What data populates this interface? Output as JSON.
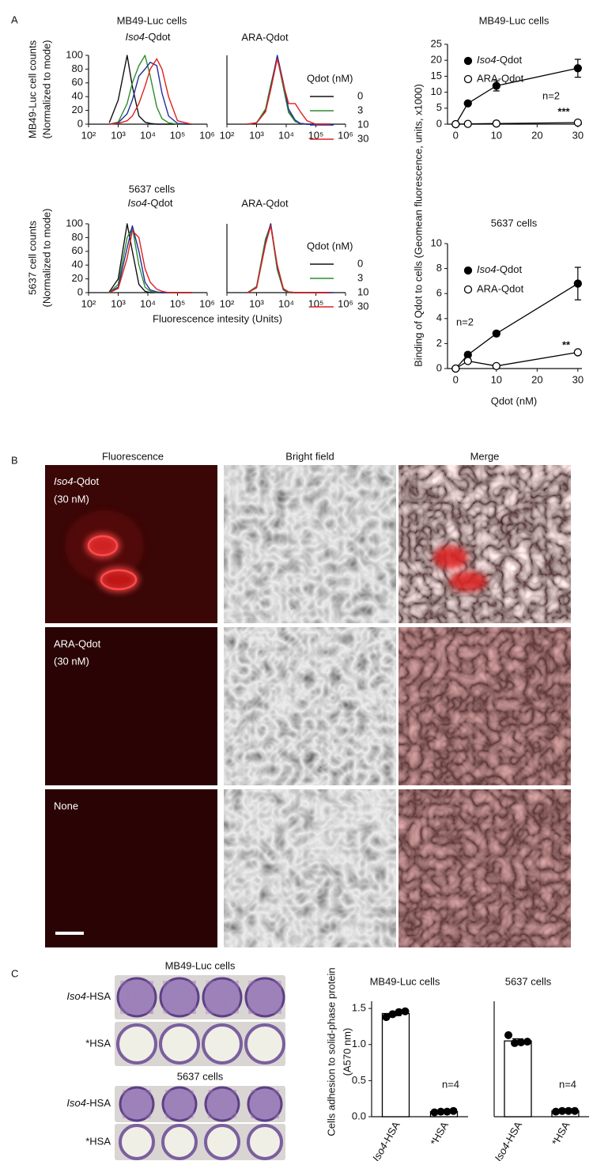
{
  "panel_labels": [
    "A",
    "B",
    "C"
  ],
  "chart_data": [
    {
      "type": "line",
      "title": "MB49-Luc cells",
      "subtitle": {
        "italic": "Iso4",
        "plain": "-Qdot"
      },
      "y_label": [
        "MB49-Luc cell counts",
        "(Normalized to mode)"
      ],
      "log_x": true,
      "x": [
        500,
        1000,
        2000,
        3000,
        5000,
        8000,
        12000,
        20000,
        30000,
        50000,
        100000,
        300000
      ],
      "xlim": [
        100,
        1000000
      ],
      "xticks": [
        {
          "value": 100,
          "label": "10²"
        },
        {
          "value": 1000,
          "label": "10³"
        },
        {
          "value": 10000,
          "label": "10⁴"
        },
        {
          "value": 100000,
          "label": "10⁵"
        },
        {
          "value": 1000000,
          "label": "10⁶"
        }
      ],
      "ylim": [
        0,
        100
      ],
      "yticks": [
        0,
        20,
        40,
        60,
        80,
        100
      ],
      "series": [
        {
          "color": "#111111",
          "values": [
            2,
            35,
            100,
            55,
            12,
            3,
            1,
            0,
            0,
            0,
            0,
            0
          ]
        },
        {
          "color": "#2e8b2e",
          "values": [
            0,
            3,
            30,
            60,
            85,
            100,
            70,
            25,
            8,
            2,
            0,
            0
          ]
        },
        {
          "color": "#1f2f99",
          "values": [
            0,
            2,
            15,
            35,
            70,
            80,
            90,
            85,
            45,
            12,
            1,
            0
          ]
        },
        {
          "color": "#e0201b",
          "values": [
            0,
            1,
            5,
            12,
            30,
            55,
            80,
            95,
            80,
            40,
            5,
            0
          ]
        }
      ]
    },
    {
      "type": "line",
      "subtitle": "ARA-Qdot",
      "legend_title": "Qdot (nM)",
      "log_x": true,
      "x": [
        500,
        1000,
        2000,
        3000,
        5000,
        8000,
        12000,
        20000,
        30000,
        50000,
        100000,
        300000
      ],
      "xlim": [
        100,
        1000000
      ],
      "xticks": [
        {
          "value": 100,
          "label": "10²"
        },
        {
          "value": 1000,
          "label": "10³"
        },
        {
          "value": 10000,
          "label": "10⁴"
        },
        {
          "value": 100000,
          "label": "10⁵"
        },
        {
          "value": 1000000,
          "label": "10⁶"
        }
      ],
      "ylim": [
        0,
        100
      ],
      "series": [
        {
          "name": "0",
          "color": "#111111",
          "values": [
            0,
            2,
            20,
            55,
            98,
            55,
            18,
            4,
            1,
            0,
            0,
            0
          ]
        },
        {
          "name": "3",
          "color": "#2e8b2e",
          "values": [
            0,
            2,
            22,
            57,
            97,
            53,
            17,
            4,
            1,
            0,
            0,
            0
          ]
        },
        {
          "name": "10",
          "color": "#1f2f99",
          "values": [
            0,
            2,
            18,
            52,
            100,
            60,
            22,
            6,
            1,
            0,
            0,
            0
          ]
        },
        {
          "name": "30",
          "color": "#e0201b",
          "values": [
            0,
            2,
            18,
            50,
            95,
            58,
            30,
            30,
            18,
            5,
            0,
            0
          ]
        }
      ]
    },
    {
      "type": "line",
      "title": "5637 cells",
      "subtitle": {
        "italic": "Iso4",
        "plain": "-Qdot"
      },
      "y_label": [
        "5637 cell counts",
        "(Normalized to mode)"
      ],
      "x_label": "Fluorescence intesity (Units)",
      "log_x": true,
      "x": [
        500,
        1000,
        2000,
        3000,
        5000,
        8000,
        12000,
        20000,
        30000,
        50000,
        100000,
        300000
      ],
      "xlim": [
        100,
        1000000
      ],
      "xticks": [
        {
          "value": 100,
          "label": "10²"
        },
        {
          "value": 1000,
          "label": "10³"
        },
        {
          "value": 10000,
          "label": "10⁴"
        },
        {
          "value": 100000,
          "label": "10⁵"
        },
        {
          "value": 1000000,
          "label": "10⁶"
        }
      ],
      "ylim": [
        0,
        100
      ],
      "yticks": [
        0,
        20,
        40,
        60,
        80,
        100
      ],
      "series": [
        {
          "color": "#111111",
          "values": [
            1,
            20,
            100,
            60,
            12,
            2,
            0,
            0,
            0,
            0,
            0,
            0
          ]
        },
        {
          "color": "#2e8b2e",
          "values": [
            0,
            12,
            80,
            95,
            40,
            8,
            2,
            0,
            0,
            0,
            0,
            0
          ]
        },
        {
          "color": "#1f2f99",
          "values": [
            0,
            8,
            65,
            97,
            60,
            15,
            4,
            1,
            0,
            0,
            0,
            0
          ]
        },
        {
          "color": "#e0201b",
          "values": [
            0,
            6,
            50,
            90,
            80,
            35,
            15,
            5,
            2,
            0,
            0,
            0
          ]
        }
      ]
    },
    {
      "type": "line",
      "subtitle": "ARA-Qdot",
      "legend_title": "Qdot (nM)",
      "log_x": true,
      "x": [
        500,
        1000,
        2000,
        3000,
        5000,
        8000,
        12000,
        20000,
        30000,
        50000,
        100000,
        300000
      ],
      "xlim": [
        100,
        1000000
      ],
      "xticks": [
        {
          "value": 100,
          "label": "10²"
        },
        {
          "value": 1000,
          "label": "10³"
        },
        {
          "value": 10000,
          "label": "10⁴"
        },
        {
          "value": 100000,
          "label": "10⁵"
        },
        {
          "value": 1000000,
          "label": "10⁶"
        }
      ],
      "ylim": [
        0,
        100
      ],
      "series": [
        {
          "name": "0",
          "color": "#111111",
          "values": [
            0,
            8,
            75,
            100,
            35,
            4,
            0,
            0,
            0,
            0,
            0,
            0
          ]
        },
        {
          "name": "3",
          "color": "#2e8b2e",
          "values": [
            0,
            9,
            78,
            98,
            33,
            4,
            0,
            0,
            0,
            0,
            0,
            0
          ]
        },
        {
          "name": "10",
          "color": "#1f2f99",
          "values": [
            0,
            7,
            72,
            100,
            38,
            5,
            1,
            0,
            0,
            0,
            0,
            0
          ]
        },
        {
          "name": "30",
          "color": "#e0201b",
          "values": [
            0,
            7,
            70,
            97,
            40,
            6,
            1,
            0,
            0,
            0,
            0,
            0
          ]
        }
      ]
    },
    {
      "type": "line",
      "title": "MB49-Luc cells",
      "y_label": "Binding of Qdot to cells (Geomean fluorescence, units, x1000)",
      "x": [
        0,
        3,
        10,
        30
      ],
      "xlim": [
        -2,
        31
      ],
      "xticks": [
        0,
        10,
        20,
        30
      ],
      "ylim": [
        0,
        25
      ],
      "yticks": [
        0,
        5,
        10,
        15,
        20,
        25
      ],
      "series": [
        {
          "name": {
            "italic": "Iso4",
            "plain": "-Qdot"
          },
          "color": "#000000",
          "marker": "filled",
          "values": [
            0,
            6.5,
            12,
            17.5
          ],
          "errors": [
            0,
            0.3,
            1.6,
            2.8
          ]
        },
        {
          "name": "ARA-Qdot",
          "color": "#000000",
          "marker": "open",
          "values": [
            0,
            0.1,
            0.2,
            0.5
          ],
          "errors": [
            0,
            0,
            0,
            0
          ]
        }
      ],
      "annotations": [
        "***",
        "n=2"
      ]
    },
    {
      "type": "line",
      "title": "5637 cells",
      "x_label": "Qdot (nM)",
      "x": [
        0,
        3,
        10,
        30
      ],
      "xlim": [
        -2,
        31
      ],
      "xticks": [
        0,
        10,
        20,
        30
      ],
      "ylim": [
        0,
        10
      ],
      "yticks": [
        0,
        2,
        4,
        6,
        8,
        10
      ],
      "series": [
        {
          "name": {
            "italic": "Iso4",
            "plain": "-Qdot"
          },
          "color": "#000000",
          "marker": "filled",
          "values": [
            0,
            1.1,
            2.8,
            6.8
          ],
          "errors": [
            0,
            0.2,
            0.2,
            1.3
          ]
        },
        {
          "name": "ARA-Qdot",
          "color": "#000000",
          "marker": "open",
          "values": [
            0,
            0.6,
            0.2,
            1.3
          ],
          "errors": [
            0,
            0.1,
            0,
            0.1
          ]
        }
      ],
      "annotations": [
        "n=2",
        "**"
      ]
    },
    {
      "type": "bar",
      "title": "MB49-Luc cells",
      "y_label": [
        "Cells adhesion to solid-phase protein",
        "(A570 nm)"
      ],
      "categories": [
        {
          "italic": "Iso4",
          "plain": "-HSA"
        },
        "*HSA"
      ],
      "values": [
        1.43,
        0.07
      ],
      "errors": [
        0.03,
        0.01
      ],
      "points": [
        [
          1.38,
          1.42,
          1.45,
          1.46
        ],
        [
          0.06,
          0.07,
          0.07,
          0.08
        ]
      ],
      "color": "#ffffff",
      "edge_color": "#000000",
      "ylim": [
        0,
        1.6
      ],
      "yticks": [
        {
          "value": 0,
          "label": "0.0"
        },
        0.5,
        {
          "value": 1,
          "label": "1.0"
        },
        1.5
      ],
      "annotations": [
        "n=4"
      ]
    },
    {
      "type": "bar",
      "title": "5637 cells",
      "categories": [
        {
          "italic": "Iso4",
          "plain": "-HSA"
        },
        "*HSA"
      ],
      "values": [
        1.05,
        0.08
      ],
      "errors": [
        0.03,
        0.01
      ],
      "points": [
        [
          1.13,
          1.02,
          1.03,
          1.04
        ],
        [
          0.07,
          0.08,
          0.08,
          0.08
        ]
      ],
      "color": "#ffffff",
      "edge_color": "#000000",
      "ylim": [
        0,
        1.6
      ],
      "annotations": [
        "n=4"
      ]
    }
  ],
  "panel_b": {
    "columns": [
      "Fluorescence",
      "Bright field",
      "Merge"
    ],
    "rows": [
      [
        {
          "italic": "Iso4",
          "plain": "-Qdot"
        },
        "(30 nM)"
      ],
      [
        "ARA-Qdot",
        "(30 nM)"
      ],
      [
        "None"
      ]
    ]
  },
  "panel_c": {
    "plates": [
      {
        "title": "MB49-Luc cells",
        "rows": [
          {
            "italic": "Iso4",
            "plain": "-HSA"
          },
          "*HSA"
        ]
      },
      {
        "title": "5637 cells",
        "rows": [
          {
            "italic": "Iso4",
            "plain": "-HSA"
          },
          "*HSA"
        ]
      }
    ]
  }
}
